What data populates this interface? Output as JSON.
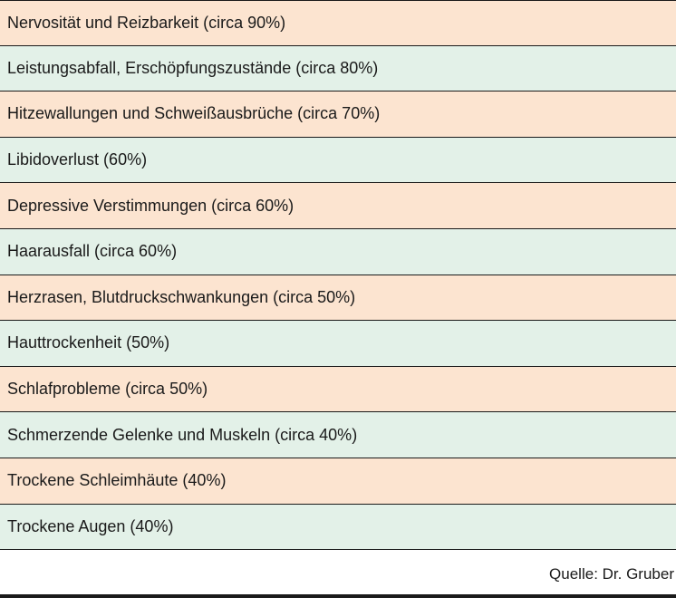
{
  "rows": [
    "Nervosität und Reizbarkeit (circa 90%)",
    "Leistungsabfall, Erschöpfungszustände (circa 80%)",
    "Hitzewallungen und Schweißausbrüche (circa 70%)",
    "Libidoverlust (60%)",
    "Depressive Verstimmungen (circa 60%)",
    "Haarausfall (circa 60%)",
    "Herzrasen, Blutdruckschwankungen (circa 50%)",
    "Hauttrockenheit (50%)",
    "Schlafprobleme (circa 50%)",
    "Schmerzende Gelenke und Muskeln (circa 40%)",
    "Trockene Schleimhäute (40%)",
    "Trockene Augen (40%)"
  ],
  "source": "Quelle: Dr. Gruber",
  "colors": {
    "row_odd": "#fce4d0",
    "row_even": "#e3f1e8",
    "rule": "#1a1a1a"
  }
}
